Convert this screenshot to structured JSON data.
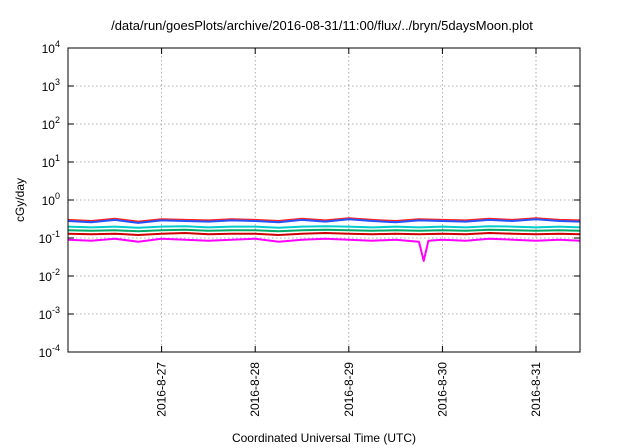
{
  "chart_data": {
    "type": "line",
    "title": "/data/run/goesPlots/archive/2016-08-31/11:00/flux/../bryn/5daysMoon.plot",
    "xlabel": "Coordinated Universal Time (UTC)",
    "ylabel": "cGy/day",
    "yscale": "log",
    "ylim": [
      0.0001,
      10000
    ],
    "xlim": [
      0,
      5.47
    ],
    "x_tick_positions": [
      1,
      2,
      3,
      4,
      5
    ],
    "x_tick_labels": [
      "2016-8-27",
      "2016-8-28",
      "2016-8-29",
      "2016-8-30",
      "2016-8-31"
    ],
    "y_ticks": [
      {
        "value": 0.0001,
        "base": "10",
        "exp": "-4"
      },
      {
        "value": 0.001,
        "base": "10",
        "exp": "-3"
      },
      {
        "value": 0.01,
        "base": "10",
        "exp": "-2"
      },
      {
        "value": 0.1,
        "base": "10",
        "exp": "-1"
      },
      {
        "value": 1,
        "base": "10",
        "exp": "0"
      },
      {
        "value": 10,
        "base": "10",
        "exp": "1"
      },
      {
        "value": 100,
        "base": "10",
        "exp": "2"
      },
      {
        "value": 1000,
        "base": "10",
        "exp": "3"
      },
      {
        "value": 10000,
        "base": "10",
        "exp": "4"
      }
    ],
    "grid": true,
    "legend": "none",
    "series": [
      {
        "color": "#ff00ff",
        "x": [
          0,
          0.25,
          0.5,
          0.75,
          1,
          1.25,
          1.5,
          1.75,
          2,
          2.25,
          2.5,
          2.75,
          3,
          3.25,
          3.5,
          3.75,
          3.8,
          3.85,
          4,
          4.25,
          4.5,
          4.75,
          5,
          5.25,
          5.47
        ],
        "y": [
          0.09,
          0.085,
          0.095,
          0.08,
          0.095,
          0.09,
          0.085,
          0.09,
          0.095,
          0.08,
          0.09,
          0.095,
          0.09,
          0.085,
          0.09,
          0.08,
          0.025,
          0.085,
          0.09,
          0.085,
          0.095,
          0.09,
          0.085,
          0.09,
          0.085
        ]
      },
      {
        "color": "#cc0000",
        "x": [
          0,
          0.25,
          0.5,
          0.75,
          1,
          1.25,
          1.5,
          1.75,
          2,
          2.25,
          2.5,
          2.75,
          3,
          3.25,
          3.5,
          3.75,
          4,
          4.25,
          4.5,
          4.75,
          5,
          5.25,
          5.47
        ],
        "y": [
          0.13,
          0.125,
          0.13,
          0.12,
          0.13,
          0.135,
          0.125,
          0.13,
          0.13,
          0.12,
          0.13,
          0.135,
          0.13,
          0.125,
          0.13,
          0.125,
          0.13,
          0.125,
          0.135,
          0.13,
          0.125,
          0.13,
          0.125
        ]
      },
      {
        "color": "#00aa66",
        "x": [
          0,
          0.25,
          0.5,
          0.75,
          1,
          1.25,
          1.5,
          1.75,
          2,
          2.25,
          2.5,
          2.75,
          3,
          3.25,
          3.5,
          3.75,
          4,
          4.25,
          4.5,
          4.75,
          5,
          5.25,
          5.47
        ],
        "y": [
          0.16,
          0.155,
          0.16,
          0.15,
          0.16,
          0.165,
          0.155,
          0.16,
          0.16,
          0.15,
          0.16,
          0.165,
          0.16,
          0.155,
          0.16,
          0.155,
          0.16,
          0.155,
          0.165,
          0.16,
          0.155,
          0.16,
          0.155
        ]
      },
      {
        "color": "#00cccc",
        "x": [
          0,
          0.25,
          0.5,
          0.75,
          1,
          1.25,
          1.5,
          1.75,
          2,
          2.25,
          2.5,
          2.75,
          3,
          3.25,
          3.5,
          3.75,
          4,
          4.25,
          4.5,
          4.75,
          5,
          5.25,
          5.47
        ],
        "y": [
          0.2,
          0.19,
          0.2,
          0.185,
          0.2,
          0.205,
          0.19,
          0.2,
          0.2,
          0.185,
          0.2,
          0.205,
          0.2,
          0.19,
          0.2,
          0.19,
          0.2,
          0.19,
          0.205,
          0.2,
          0.19,
          0.2,
          0.19
        ]
      },
      {
        "color": "#ff2222",
        "x": [
          0,
          0.25,
          0.5,
          0.75,
          1,
          1.25,
          1.5,
          1.75,
          2,
          2.25,
          2.5,
          2.75,
          3,
          3.25,
          3.5,
          3.75,
          4,
          4.25,
          4.5,
          4.75,
          5,
          5.25,
          5.47
        ],
        "y": [
          0.3,
          0.28,
          0.32,
          0.27,
          0.31,
          0.3,
          0.29,
          0.31,
          0.3,
          0.28,
          0.32,
          0.29,
          0.33,
          0.3,
          0.28,
          0.31,
          0.3,
          0.29,
          0.32,
          0.3,
          0.33,
          0.3,
          0.29
        ]
      },
      {
        "color": "#2255ff",
        "x": [
          0,
          0.25,
          0.5,
          0.75,
          1,
          1.25,
          1.5,
          1.75,
          2,
          2.25,
          2.5,
          2.75,
          3,
          3.25,
          3.5,
          3.75,
          4,
          4.25,
          4.5,
          4.75,
          5,
          5.25,
          5.47
        ],
        "y": [
          0.28,
          0.26,
          0.3,
          0.25,
          0.29,
          0.28,
          0.27,
          0.29,
          0.28,
          0.26,
          0.3,
          0.27,
          0.31,
          0.28,
          0.26,
          0.29,
          0.28,
          0.27,
          0.3,
          0.28,
          0.31,
          0.28,
          0.27
        ]
      }
    ]
  }
}
